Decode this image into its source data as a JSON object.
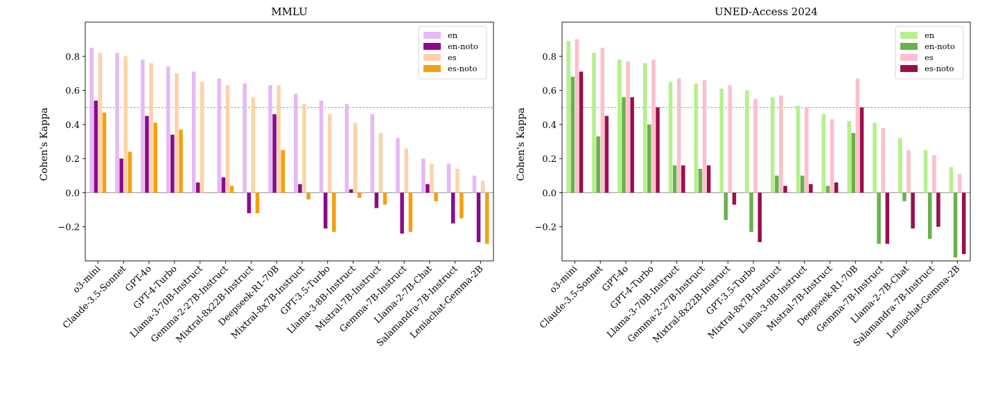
{
  "chart_data": [
    {
      "type": "bar",
      "title": "MMLU",
      "ylabel": "Cohen's Kappa",
      "xlabel": "",
      "ylim": [
        -0.4,
        1.0
      ],
      "yticks": [
        -0.2,
        0.0,
        0.2,
        0.4,
        0.6,
        0.8
      ],
      "ytick_labels": [
        "−0.2",
        "0.0",
        "0.2",
        "0.4",
        "0.6",
        "0.8"
      ],
      "reference_line": 0.5,
      "legend_placement": "top-right",
      "grid": false,
      "categories": [
        "o3-mini",
        "Claude-3.5-Sonnet",
        "GPT-4o",
        "GPT-4-Turbo",
        "Llama-3-70B-Instruct",
        "Gemma-2-27B-Instruct",
        "Mixtral-8x22B-Instruct",
        "Deepseek-R1-70B",
        "Mixtral-8x7B-Instruct",
        "GPT-3.5-Turbo",
        "Llama-3-8B-Instruct",
        "Mistral-7B-Instruct",
        "Gemma-7B-Instruct",
        "Llama-2-7B-Chat",
        "Salamandra-7B-Instruct",
        "Leniachat-Gemma-2B"
      ],
      "series": [
        {
          "name": "en",
          "color": "#e6b8f5",
          "values": [
            0.85,
            0.82,
            0.78,
            0.74,
            0.71,
            0.67,
            0.64,
            0.63,
            0.58,
            0.54,
            0.52,
            0.46,
            0.32,
            0.2,
            0.17,
            0.1
          ]
        },
        {
          "name": "en-noto",
          "color": "#8b0a8b",
          "values": [
            0.54,
            0.2,
            0.45,
            0.34,
            0.06,
            0.09,
            -0.12,
            0.46,
            0.05,
            -0.21,
            0.02,
            -0.09,
            -0.24,
            0.05,
            -0.18,
            -0.29
          ]
        },
        {
          "name": "es",
          "color": "#fcd3a8",
          "values": [
            0.82,
            0.8,
            0.76,
            0.7,
            0.65,
            0.63,
            0.56,
            0.63,
            0.52,
            0.46,
            0.41,
            0.35,
            0.26,
            0.17,
            0.14,
            0.07
          ]
        },
        {
          "name": "es-noto",
          "color": "#f5a00f",
          "values": [
            0.47,
            0.24,
            0.41,
            0.37,
            0.0,
            0.04,
            -0.12,
            0.25,
            -0.04,
            -0.23,
            -0.03,
            -0.07,
            -0.23,
            -0.05,
            -0.15,
            -0.3
          ]
        }
      ]
    },
    {
      "type": "bar",
      "title": "UNED-Access 2024",
      "ylabel": "Cohen's Kappa",
      "xlabel": "",
      "ylim": [
        -0.4,
        1.0
      ],
      "yticks": [
        -0.2,
        0.0,
        0.2,
        0.4,
        0.6,
        0.8
      ],
      "ytick_labels": [
        "−0.2",
        "0.0",
        "0.2",
        "0.4",
        "0.6",
        "0.8"
      ],
      "reference_line": 0.5,
      "legend_placement": "top-right",
      "grid": false,
      "categories": [
        "o3-mini",
        "Claude-3.5-Sonnet",
        "GPT-4o",
        "GPT-4-Turbo",
        "Llama-3-70B-Instruct",
        "Gemma-2-27B-Instruct",
        "Mixtral-8x22B-Instruct",
        "GPT-3.5-Turbo",
        "Mixtral-8x7B-Instruct",
        "Llama-3-8B-Instruct",
        "Mistral-7B-Instruct",
        "Deepseek-R1-70B",
        "Gemma-7B-Instruct",
        "Llama-2-7B-Chat",
        "Salamandra-7B-Instruct",
        "Leniachat-Gemma-2B"
      ],
      "series": [
        {
          "name": "en",
          "color": "#b5f08c",
          "values": [
            0.89,
            0.82,
            0.78,
            0.76,
            0.65,
            0.64,
            0.61,
            0.6,
            0.56,
            0.51,
            0.46,
            0.42,
            0.41,
            0.32,
            0.25,
            0.15
          ]
        },
        {
          "name": "en-noto",
          "color": "#6ab04c",
          "values": [
            0.68,
            0.33,
            0.56,
            0.4,
            0.16,
            0.14,
            -0.16,
            -0.23,
            0.1,
            0.1,
            0.04,
            0.35,
            -0.3,
            -0.05,
            -0.27,
            -0.38
          ]
        },
        {
          "name": "es",
          "color": "#fbc0cb",
          "values": [
            0.9,
            0.85,
            0.77,
            0.78,
            0.67,
            0.66,
            0.63,
            0.55,
            0.57,
            0.5,
            0.43,
            0.67,
            0.38,
            0.25,
            0.22,
            0.11
          ]
        },
        {
          "name": "es-noto",
          "color": "#9b0e4b",
          "values": [
            0.71,
            0.45,
            0.56,
            0.5,
            0.16,
            0.16,
            -0.07,
            -0.29,
            0.04,
            0.05,
            0.06,
            0.5,
            -0.3,
            -0.21,
            -0.2,
            -0.36
          ]
        }
      ]
    }
  ]
}
